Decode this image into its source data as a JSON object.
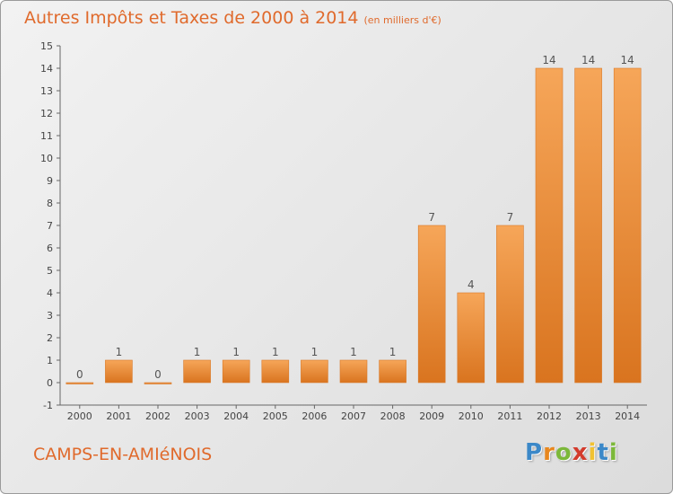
{
  "chart_data": {
    "type": "bar",
    "title": "Autres Impôts et Taxes de 2000 à 2014",
    "unit_label": "(en milliers d'€)",
    "categories": [
      "2000",
      "2001",
      "2002",
      "2003",
      "2004",
      "2005",
      "2006",
      "2007",
      "2008",
      "2009",
      "2010",
      "2011",
      "2012",
      "2013",
      "2014"
    ],
    "values": [
      0,
      1,
      0,
      1,
      1,
      1,
      1,
      1,
      1,
      7,
      4,
      7,
      14,
      14,
      14
    ],
    "ylim": [
      -1,
      15
    ],
    "yticks": [
      -1,
      0,
      1,
      2,
      3,
      4,
      5,
      6,
      7,
      8,
      9,
      10,
      11,
      12,
      13,
      14,
      15
    ],
    "bar_color": "#e8872e",
    "grid": false
  },
  "commune_name": "CAMPS-EN-AMIéNOIS",
  "logo": {
    "p": "P",
    "r": "r",
    "o": "o",
    "x": "x",
    "i1": "i",
    "t": "t",
    "i2": "i"
  },
  "colors": {
    "title": "#e06a2c",
    "axis": "#555555"
  }
}
